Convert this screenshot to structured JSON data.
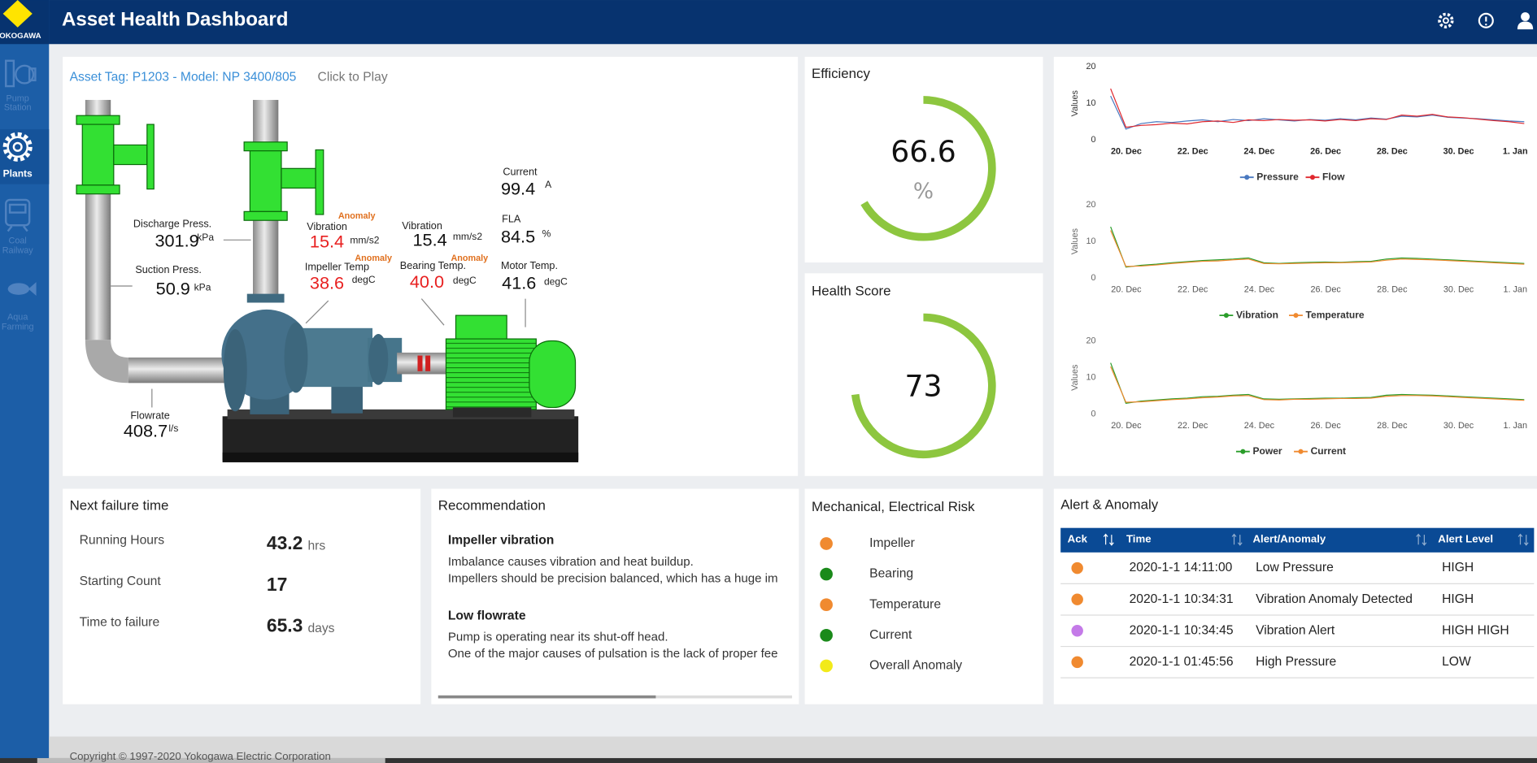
{
  "header": {
    "title": "Asset Health Dashboard",
    "logo": "YOKOGAWA"
  },
  "nav": [
    {
      "label": [
        "Pump",
        "Station"
      ],
      "active": false
    },
    {
      "label": [
        "Plants"
      ],
      "active": true
    },
    {
      "label": [
        "Coal",
        "Railway"
      ],
      "active": false
    },
    {
      "label": [
        "Aqua",
        "Farming"
      ],
      "active": false
    }
  ],
  "asset": {
    "tag": "Asset Tag: P1203 - Model: NP 3400/805",
    "action": "Click to Play",
    "readings": [
      {
        "label": "Discharge Press.",
        "value": "301.9",
        "unit": "kPa"
      },
      {
        "label": "Suction Press.",
        "value": "50.9",
        "unit": "kPa"
      },
      {
        "label": "Flowrate",
        "value": "408.7",
        "unit": "l/s"
      },
      {
        "label": "Vibration",
        "value": "15.4",
        "unit": "mm/s2",
        "status": "Anomaly"
      },
      {
        "label": "Impeller Temp",
        "value": "38.6",
        "unit": "degC",
        "status": "Anomaly"
      },
      {
        "label": "Vibration",
        "value": "15.4",
        "unit": "mm/s2"
      },
      {
        "label": "Bearing Temp.",
        "value": "40.0",
        "unit": "degC",
        "status": "Anomaly"
      },
      {
        "label": "Current",
        "value": "99.4",
        "unit": "A"
      },
      {
        "label": "FLA",
        "value": "84.5",
        "unit": "%"
      },
      {
        "label": "Motor Temp.",
        "value": "41.6",
        "unit": "degC"
      }
    ]
  },
  "efficiency": {
    "title": "Efficiency",
    "value": 66.6,
    "unit": "%",
    "range": [
      0,
      100
    ],
    "color": "#8dc63f"
  },
  "health": {
    "title": "Health Score",
    "value": 73,
    "range": [
      0,
      100
    ],
    "color": "#8dc63f"
  },
  "chart_data": [
    {
      "type": "line",
      "ylabel": "Values",
      "ylim": [
        0,
        20
      ],
      "yticks": [
        0,
        10,
        20
      ],
      "x_labels": [
        "20. Dec",
        "22. Dec",
        "24. Dec",
        "26. Dec",
        "28. Dec",
        "30. Dec",
        "1. Jan"
      ],
      "series": [
        {
          "name": "Pressure",
          "color": "#4a79c0",
          "values": [
            12,
            3,
            4.5,
            5,
            4.8,
            5.2,
            5.5,
            5,
            5.6,
            5.3,
            5.8,
            5.5,
            5.2,
            5.6,
            5.4,
            5.8,
            5.5,
            6,
            5.7,
            6.5,
            6.3,
            6.8,
            6.2,
            6,
            5.8,
            5.5,
            5.2,
            5
          ]
        },
        {
          "name": "Flow",
          "color": "#e0282e",
          "values": [
            14,
            3.5,
            4,
            4.2,
            4.6,
            4.4,
            5,
            5.2,
            4.8,
            5.5,
            5.3,
            5.6,
            5.4,
            5.5,
            5.2,
            5.6,
            5.3,
            5.8,
            5.6,
            6.8,
            6.5,
            7,
            6.3,
            6.1,
            5.7,
            5.3,
            5,
            4.5
          ]
        }
      ]
    },
    {
      "type": "line",
      "ylabel": "Values",
      "ylim": [
        0,
        20
      ],
      "yticks": [
        0,
        10,
        20
      ],
      "x_labels": [
        "20. Dec",
        "22. Dec",
        "24. Dec",
        "26. Dec",
        "28. Dec",
        "30. Dec",
        "1. Jan"
      ],
      "series": [
        {
          "name": "Vibration",
          "color": "#2a9d2a",
          "values": [
            14,
            3,
            3.5,
            3.8,
            4.2,
            4.5,
            4.8,
            5,
            5.2,
            5.5,
            4.2,
            4,
            4.2,
            4.3,
            4.4,
            4.3,
            4.5,
            4.6,
            5.2,
            5.5,
            5.4,
            5.2,
            5,
            4.8,
            4.6,
            4.4,
            4.2,
            4
          ]
        },
        {
          "name": "Temperature",
          "color": "#f08a30",
          "values": [
            13,
            3.2,
            3.3,
            3.6,
            4,
            4.3,
            4.6,
            4.7,
            5,
            5.2,
            4,
            3.9,
            4,
            4.1,
            4.2,
            4.2,
            4.3,
            4.4,
            4.9,
            5.2,
            5.1,
            5,
            4.8,
            4.6,
            4.4,
            4.2,
            4,
            3.8
          ]
        }
      ]
    },
    {
      "type": "line",
      "ylabel": "Values",
      "ylim": [
        0,
        20
      ],
      "yticks": [
        0,
        10,
        20
      ],
      "x_labels": [
        "20. Dec",
        "22. Dec",
        "24. Dec",
        "26. Dec",
        "28. Dec",
        "30. Dec",
        "1. Jan"
      ],
      "series": [
        {
          "name": "Power",
          "color": "#2a9d2a",
          "values": [
            14,
            3,
            3.6,
            3.9,
            4.2,
            4.4,
            4.8,
            4.9,
            5.2,
            5.4,
            4.2,
            4.1,
            4.2,
            4.3,
            4.4,
            4.4,
            4.5,
            4.6,
            5.2,
            5.4,
            5.3,
            5.2,
            5,
            4.8,
            4.6,
            4.4,
            4.2,
            4
          ]
        },
        {
          "name": "Current",
          "color": "#f08a30",
          "values": [
            13,
            3.3,
            3.4,
            3.7,
            4,
            4.2,
            4.5,
            4.7,
            5,
            5.1,
            4,
            3.9,
            4.1,
            4.1,
            4.2,
            4.3,
            4.3,
            4.4,
            4.9,
            5.1,
            5.1,
            5,
            4.8,
            4.6,
            4.4,
            4.2,
            4,
            3.8
          ]
        }
      ]
    }
  ],
  "next_failure": {
    "title": "Next failure time",
    "rows": [
      {
        "label": "Running Hours",
        "value": 43.2,
        "unit": "hrs"
      },
      {
        "label": "Starting Count",
        "value": 17
      },
      {
        "label": "Time to failure",
        "value": 65.3,
        "unit": "days"
      }
    ]
  },
  "recommendation": {
    "title": "Recommendation",
    "items": [
      {
        "heading": "Impeller vibration",
        "lines": [
          "Imbalance causes vibration and heat buildup.",
          "Impellers should be precision balanced, which has a huge im"
        ]
      },
      {
        "heading": "Low flowrate",
        "lines": [
          "Pump is operating near its shut-off head.",
          "One of the major causes of pulsation is the lack of proper fee"
        ]
      }
    ]
  },
  "risk": {
    "title": "Mechanical, Electrical Risk",
    "items": [
      {
        "label": "Impeller",
        "color": "#f08a30"
      },
      {
        "label": "Bearing",
        "color": "#1a8a1a"
      },
      {
        "label": "Temperature",
        "color": "#f08a30"
      },
      {
        "label": "Current",
        "color": "#1a8a1a"
      },
      {
        "label": "Overall Anomaly",
        "color": "#f2ea1a"
      }
    ]
  },
  "alerts": {
    "title": "Alert & Anomaly",
    "columns": [
      "Ack",
      "Time",
      "Alert/Anomaly",
      "Alert Level"
    ],
    "rows": [
      {
        "color": "#f08a30",
        "cells": [
          "2020-1-1 14:11:00",
          "Low Pressure",
          "HIGH"
        ]
      },
      {
        "color": "#f08a30",
        "cells": [
          "2020-1-1 10:34:31",
          "Vibration Anomaly Detected",
          "HIGH"
        ]
      },
      {
        "color": "#c47ae8",
        "cells": [
          "2020-1-1 10:34:45",
          "Vibration Alert",
          "HIGH HIGH"
        ]
      },
      {
        "color": "#f08a30",
        "cells": [
          "2020-1-1 01:45:56",
          "High Pressure",
          "LOW"
        ]
      }
    ]
  },
  "footer": "Copyright © 1997-2020 Yokogawa Electric Corporation"
}
